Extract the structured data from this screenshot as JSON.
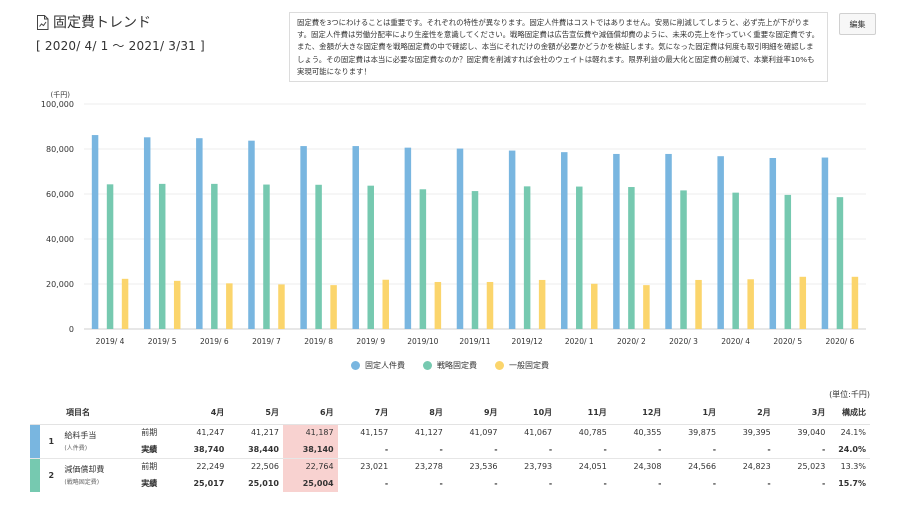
{
  "header": {
    "title": "固定費トレンド",
    "period": "[ 2020/ 4/ 1 ～ 2021/ 3/31 ]"
  },
  "note": {
    "text": "固定費を3つにわけることは重要です。それぞれの特性が異なります。固定人件費はコストではありません。安易に削減してしまうと、必ず売上が下がります。固定人件費は労働分配率により生産性を意識してください。戦略固定費は広告宣伝費や減価償却費のように、未来の売上を作っていく重要な固定費です。また、金額が大きな固定費を戦略固定費の中で確認し、本当にそれだけの金額が必要かどうかを検証します。気になった固定費は何度も取引明細を確認しましょう。その固定費は本当に必要な固定費なのか？固定費を削減すれば会社のウェイトは軽れます。限界利益の最大化と固定費の削減で、本業利益率10%も実現可能になります！"
  },
  "toolbar": {
    "edit_label": "編集"
  },
  "colors": {
    "personnel": "#79b6e0",
    "strategic": "#76c9b0",
    "general": "#fbd56c",
    "highlight": "#f8d2d0"
  },
  "chart_data": {
    "type": "bar",
    "title": "",
    "ylabel": "(千円)",
    "xlabel": "",
    "ylim": [
      0,
      100000
    ],
    "yticks": [
      0,
      20000,
      40000,
      60000,
      80000,
      100000
    ],
    "ytick_labels": [
      "0",
      "20,000",
      "40,000",
      "60,000",
      "80,000",
      "100,000"
    ],
    "grid": true,
    "legend_position": "bottom",
    "categories": [
      "2019/ 4",
      "2019/ 5",
      "2019/ 6",
      "2019/ 7",
      "2019/ 8",
      "2019/ 9",
      "2019/10",
      "2019/11",
      "2019/12",
      "2020/ 1",
      "2020/ 2",
      "2020/ 3",
      "2020/ 4",
      "2020/ 5",
      "2020/ 6"
    ],
    "series": [
      {
        "name": "固定人件費",
        "color": "#79b6e0",
        "values": [
          86200,
          85200,
          84800,
          83700,
          81300,
          81300,
          80600,
          80200,
          79300,
          78600,
          77800,
          77800,
          76800,
          76000,
          76200
        ]
      },
      {
        "name": "戦略固定費",
        "color": "#76c9b0",
        "values": [
          64300,
          64500,
          64500,
          64200,
          64100,
          63700,
          62100,
          61300,
          63400,
          63300,
          63100,
          61600,
          60600,
          59600,
          58600
        ]
      },
      {
        "name": "一般固定費",
        "color": "#fbd56c",
        "values": [
          22300,
          21400,
          20300,
          19800,
          19500,
          21900,
          20900,
          20900,
          21800,
          20100,
          19500,
          21800,
          22100,
          23200,
          23200
        ]
      }
    ]
  },
  "table": {
    "unit": "(単位:千円)",
    "headers": {
      "item": "項目名",
      "months": [
        "4月",
        "5月",
        "6月",
        "7月",
        "8月",
        "9月",
        "10月",
        "11月",
        "12月",
        "1月",
        "2月",
        "3月"
      ],
      "ratio": "構成比"
    },
    "rows": [
      {
        "num": "1",
        "name": "給料手当",
        "sub": "(人件費)",
        "bar_color": "#79b6e0",
        "prev_label": "前期",
        "actual_label": "実績",
        "prev": [
          "41,247",
          "41,217",
          "41,187",
          "41,157",
          "41,127",
          "41,097",
          "41,067",
          "40,785",
          "40,355",
          "39,875",
          "39,395",
          "39,040"
        ],
        "prev_ratio": "24.1%",
        "actual": [
          "38,740",
          "38,440",
          "38,140",
          "-",
          "-",
          "-",
          "-",
          "-",
          "-",
          "-",
          "-",
          "-"
        ],
        "actual_ratio": "24.0%"
      },
      {
        "num": "2",
        "name": "減価償却費",
        "sub": "(戦略固定費)",
        "bar_color": "#76c9b0",
        "prev_label": "前期",
        "actual_label": "実績",
        "prev": [
          "22,249",
          "22,506",
          "22,764",
          "23,021",
          "23,278",
          "23,536",
          "23,793",
          "24,051",
          "24,308",
          "24,566",
          "24,823",
          "25,023"
        ],
        "prev_ratio": "13.3%",
        "actual": [
          "25,017",
          "25,010",
          "25,004",
          "-",
          "-",
          "-",
          "-",
          "-",
          "-",
          "-",
          "-",
          "-"
        ],
        "actual_ratio": "15.7%"
      }
    ]
  }
}
